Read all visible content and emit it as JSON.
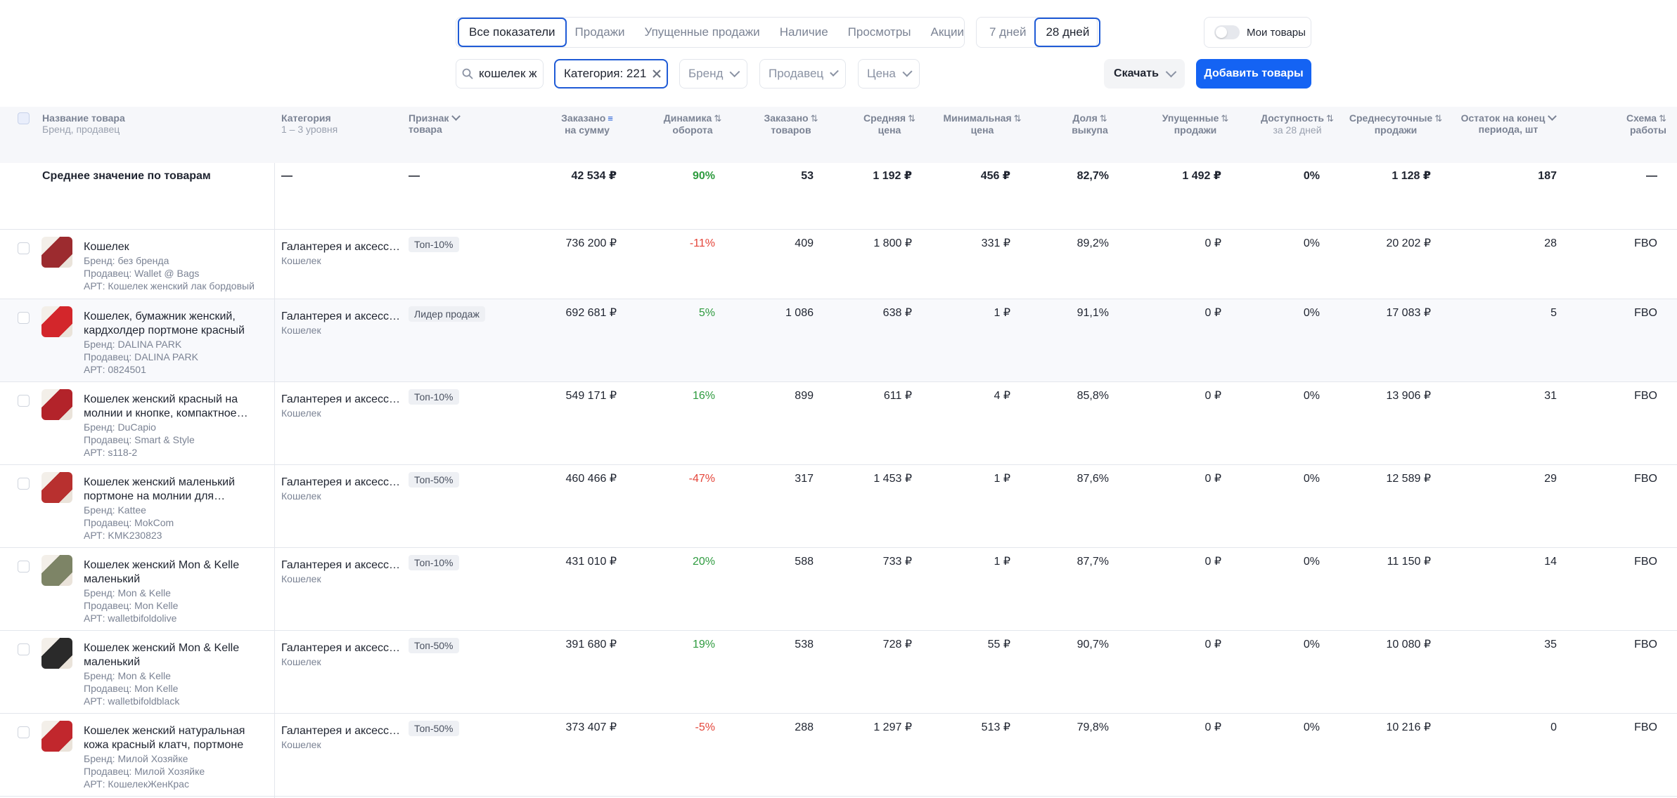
{
  "tabs_main": [
    {
      "label": "Все показатели",
      "active": true
    },
    {
      "label": "Продажи",
      "active": false
    },
    {
      "label": "Упущенные продажи",
      "active": false
    },
    {
      "label": "Наличие",
      "active": false
    },
    {
      "label": "Просмотры",
      "active": false
    },
    {
      "label": "Акции",
      "active": false
    }
  ],
  "tabs_period": [
    {
      "label": "7 дней",
      "active": false
    },
    {
      "label": "28 дней",
      "active": true
    }
  ],
  "my_goods_label": "Мои товары",
  "filters": {
    "search_value": "кошелек ж",
    "category_label": "Категория: 221",
    "brand_label": "Бренд",
    "seller_label": "Продавец",
    "price_label": "Цена"
  },
  "download_label": "Скачать",
  "add_label": "Добавить товары",
  "columns": {
    "name": "Название товара",
    "name_sub": "Бренд, продавец",
    "category": "Категория",
    "category_sub": "1 – 3 уровня",
    "feature_1": "Признак",
    "feature_2": "товара",
    "ordered_sum_1": "Заказано",
    "ordered_sum_2": "на сумму",
    "dynamics_1": "Динамика",
    "dynamics_2": "оборота",
    "ordered_qty_1": "Заказано",
    "ordered_qty_2": "товаров",
    "avg_price_1": "Средняя",
    "avg_price_2": "цена",
    "min_price_1": "Минимальная",
    "min_price_2": "цена",
    "buyout_1": "Доля",
    "buyout_2": "выкупа",
    "lost_1": "Упущенные",
    "lost_2": "продажи",
    "avail_1": "Доступность",
    "avail_2": "за 28 дней",
    "daily_1": "Среднесуточные",
    "daily_2": "продажи",
    "stock_1": "Остаток на конец",
    "stock_2": "периода, шт",
    "scheme_1": "Схема",
    "scheme_2": "работы"
  },
  "average_row": {
    "label": "Среднее значение по товарам",
    "category": "—",
    "feature": "—",
    "ordered_sum": "42 534 ₽",
    "dynamics": "90%",
    "ordered_qty": "53",
    "avg_price": "1 192 ₽",
    "min_price": "456 ₽",
    "buyout": "82,7%",
    "lost": "1 492 ₽",
    "avail": "0%",
    "daily": "1 128 ₽",
    "stock": "187",
    "scheme": "—"
  },
  "products": [
    {
      "title": "Кошелек",
      "brand": "Бренд: без бренда",
      "seller": "Продавец: Wallet @ Bags",
      "art": "АРТ: Кошелек женский лак бордовый",
      "category": "Галантерея и аксессуары",
      "subcategory": "Кошелек",
      "badge": "Топ-10%",
      "ordered_sum": "736 200 ₽",
      "dynamics": "-11%",
      "dyn_sign": "neg",
      "ordered_qty": "409",
      "avg_price": "1 800 ₽",
      "min_price": "331 ₽",
      "buyout": "89,2%",
      "lost": "0 ₽",
      "avail": "0%",
      "daily": "20 202 ₽",
      "stock": "28",
      "scheme": "FBO",
      "thumb_color": "#9c2b2f"
    },
    {
      "title": "Кошелек, бумажник женский, кардхолдер портмоне красный",
      "brand": "Бренд: DALINA PARK",
      "seller": "Продавец: DALINA PARK",
      "art": "АРТ: 0824501",
      "category": "Галантерея и аксессуары",
      "subcategory": "Кошелек",
      "badge": "Лидер продаж",
      "ordered_sum": "692 681 ₽",
      "dynamics": "5%",
      "dyn_sign": "pos",
      "ordered_qty": "1 086",
      "avg_price": "638 ₽",
      "min_price": "1 ₽",
      "buyout": "91,1%",
      "lost": "0 ₽",
      "avail": "0%",
      "daily": "17 083 ₽",
      "stock": "5",
      "scheme": "FBO",
      "thumb_color": "#d3262b"
    },
    {
      "title": "Кошелек женский красный на молнии и кнопке, компактное…",
      "brand": "Бренд: DuCapio",
      "seller": "Продавец: Smart & Style",
      "art": "АРТ: s118-2",
      "category": "Галантерея и аксессуары",
      "subcategory": "Кошелек",
      "badge": "Топ-10%",
      "ordered_sum": "549 171 ₽",
      "dynamics": "16%",
      "dyn_sign": "pos",
      "ordered_qty": "899",
      "avg_price": "611 ₽",
      "min_price": "4 ₽",
      "buyout": "85,8%",
      "lost": "0 ₽",
      "avail": "0%",
      "daily": "13 906 ₽",
      "stock": "31",
      "scheme": "FBO",
      "thumb_color": "#b3232a"
    },
    {
      "title": "Кошелек женский маленький портмоне на молнии для…",
      "brand": "Бренд: Kattee",
      "seller": "Продавец: MokCom",
      "art": "АРТ: KMK230823",
      "category": "Галантерея и аксессуары",
      "subcategory": "Кошелек",
      "badge": "Топ-50%",
      "ordered_sum": "460 466 ₽",
      "dynamics": "-47%",
      "dyn_sign": "neg",
      "ordered_qty": "317",
      "avg_price": "1 453 ₽",
      "min_price": "1 ₽",
      "buyout": "87,6%",
      "lost": "0 ₽",
      "avail": "0%",
      "daily": "12 589 ₽",
      "stock": "29",
      "scheme": "FBO",
      "thumb_color": "#b8302f"
    },
    {
      "title": "Кошелек женский Mon & Kelle маленький",
      "brand": "Бренд: Mon & Kelle",
      "seller": "Продавец: Mon Kelle",
      "art": "АРТ: walletbifoldolive",
      "category": "Галантерея и аксессуары",
      "subcategory": "Кошелек",
      "badge": "Топ-10%",
      "ordered_sum": "431 010 ₽",
      "dynamics": "20%",
      "dyn_sign": "pos",
      "ordered_qty": "588",
      "avg_price": "733 ₽",
      "min_price": "1 ₽",
      "buyout": "87,7%",
      "lost": "0 ₽",
      "avail": "0%",
      "daily": "11 150 ₽",
      "stock": "14",
      "scheme": "FBO",
      "thumb_color": "#7d8466"
    },
    {
      "title": "Кошелек женский Mon & Kelle маленький",
      "brand": "Бренд: Mon & Kelle",
      "seller": "Продавец: Mon Kelle",
      "art": "АРТ: walletbifoldblack",
      "category": "Галантерея и аксессуары",
      "subcategory": "Кошелек",
      "badge": "Топ-50%",
      "ordered_sum": "391 680 ₽",
      "dynamics": "19%",
      "dyn_sign": "pos",
      "ordered_qty": "538",
      "avg_price": "728 ₽",
      "min_price": "55 ₽",
      "buyout": "90,7%",
      "lost": "0 ₽",
      "avail": "0%",
      "daily": "10 080 ₽",
      "stock": "35",
      "scheme": "FBO",
      "thumb_color": "#2a2a2a"
    },
    {
      "title": "Кошелек женский натуральная кожа красный клатч, портмоне",
      "brand": "Бренд: Милой Хозяйке",
      "seller": "Продавец: Милой Хозяйке",
      "art": "АРТ: КошелекЖенКрас",
      "category": "Галантерея и аксессуары",
      "subcategory": "Кошелек",
      "badge": "Топ-50%",
      "ordered_sum": "373 407 ₽",
      "dynamics": "-5%",
      "dyn_sign": "neg",
      "ordered_qty": "288",
      "avg_price": "1 297 ₽",
      "min_price": "513 ₽",
      "buyout": "79,8%",
      "lost": "0 ₽",
      "avail": "0%",
      "daily": "10 216 ₽",
      "stock": "0",
      "scheme": "FBO",
      "thumb_color": "#c1272d"
    }
  ]
}
